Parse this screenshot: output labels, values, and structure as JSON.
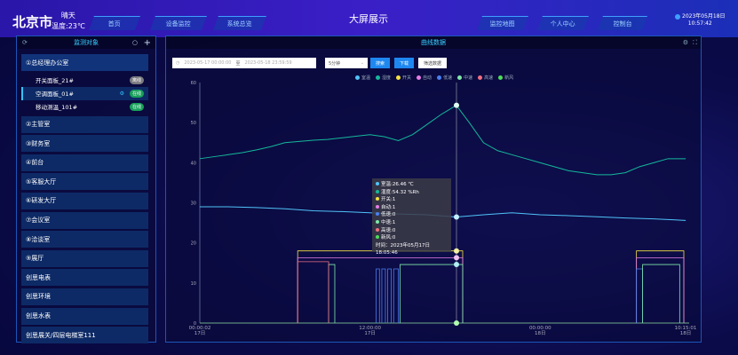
{
  "header": {
    "city": "北京市",
    "weather": "晴天",
    "temperature": "温度:23℃",
    "title": "大屏展示",
    "nav_left": [
      "首页",
      "设备监控",
      "系统总览"
    ],
    "nav_right": [
      "监控地图",
      "个人中心",
      "控制台"
    ],
    "date": "2023年05月18日",
    "time": "10:57:42"
  },
  "left_panel": {
    "title": "监测对象",
    "groups": [
      {
        "label": "①总经理办公室",
        "devices": [
          {
            "name": "开关面板_21#",
            "status": "离线",
            "status_color": "#7a7a80"
          },
          {
            "name": "空调面板_01#",
            "status": "在线",
            "status_color": "#17a05a",
            "selected": true
          },
          {
            "name": "移动测温_101#",
            "status": "在线",
            "status_color": "#17a05a"
          }
        ]
      }
    ],
    "items": [
      "②主管室",
      "③财务室",
      "④前台",
      "⑤客服大厅",
      "⑥研发大厅",
      "⑦会议室",
      "⑧洽谈室",
      "⑨展厅",
      "创思电表",
      "创思环境",
      "创思水表",
      "创思展关/四层电梯室111"
    ]
  },
  "main_panel": {
    "title": "曲线数据",
    "start_date": "2023-05-17 00:00:00",
    "end_label": "至",
    "end_date": "2023-05-18 23:59:59",
    "interval": "5分钟",
    "search": "搜索",
    "download": "下载",
    "filter": "筛选数据"
  },
  "tooltip": {
    "lines": [
      {
        "text": "室温:26.46 ℃",
        "color": "#4fc3f7"
      },
      {
        "text": "湿度:54.32 %Rh",
        "color": "#15b89a"
      },
      {
        "text": "开关:1",
        "color": "#f5e142"
      },
      {
        "text": "自动:1",
        "color": "#e67ee6"
      },
      {
        "text": "低速:0",
        "color": "#4a7ff0"
      },
      {
        "text": "中速:1",
        "color": "#7ee8a8"
      },
      {
        "text": "高速:0",
        "color": "#f07080"
      },
      {
        "text": "新风:0",
        "color": "#4ddc5a"
      }
    ],
    "time": "时间：2023年05月17日 18:05:46"
  },
  "chart_data": {
    "type": "line",
    "ylim": [
      0,
      60
    ],
    "yticks": [
      "0",
      "10",
      "20",
      "30",
      "40",
      "50",
      "60"
    ],
    "xticks": [
      {
        "t": "2023-05-17 00:00:02",
        "label": "00:00:02",
        "day": "17日"
      },
      {
        "t": "2023-05-17 12:00:00",
        "label": "12:00:00",
        "day": "17日"
      },
      {
        "t": "2023-05-18 00:00:00",
        "label": "00:00:00",
        "day": "18日"
      },
      {
        "t": "2023-05-18 10:15:01",
        "label": "10:15:01",
        "day": "18日"
      }
    ],
    "cursor": "2023-05-17 18:05:46",
    "series": [
      {
        "name": "室温",
        "color": "#4fc3f7",
        "points": [
          [
            "2023-05-17 00:00",
            29
          ],
          [
            "2023-05-17 02:00",
            29
          ],
          [
            "2023-05-17 04:00",
            28.8
          ],
          [
            "2023-05-17 06:00",
            28.5
          ],
          [
            "2023-05-17 08:00",
            28
          ],
          [
            "2023-05-17 10:00",
            27.8
          ],
          [
            "2023-05-17 12:00",
            27.5
          ],
          [
            "2023-05-17 14:00",
            27.2
          ],
          [
            "2023-05-17 16:00",
            27
          ],
          [
            "2023-05-17 18:05",
            26.46
          ],
          [
            "2023-05-17 20:00",
            27
          ],
          [
            "2023-05-17 22:00",
            27.5
          ],
          [
            "2023-05-18 00:00",
            27
          ],
          [
            "2023-05-18 02:00",
            26.8
          ],
          [
            "2023-05-18 04:00",
            26.5
          ],
          [
            "2023-05-18 06:00",
            26.2
          ],
          [
            "2023-05-18 08:00",
            26
          ],
          [
            "2023-05-18 10:15",
            25.6
          ]
        ]
      },
      {
        "name": "湿度",
        "color": "#15b89a",
        "points": [
          [
            "2023-05-17 00:00",
            41
          ],
          [
            "2023-05-17 01:00",
            41.5
          ],
          [
            "2023-05-17 02:00",
            42
          ],
          [
            "2023-05-17 03:00",
            42.5
          ],
          [
            "2023-05-17 04:00",
            43.2
          ],
          [
            "2023-05-17 05:00",
            44
          ],
          [
            "2023-05-17 06:00",
            45
          ],
          [
            "2023-05-17 07:00",
            45.3
          ],
          [
            "2023-05-17 08:00",
            45.6
          ],
          [
            "2023-05-17 09:00",
            45.8
          ],
          [
            "2023-05-17 10:00",
            46.2
          ],
          [
            "2023-05-17 11:00",
            46.6
          ],
          [
            "2023-05-17 12:00",
            47
          ],
          [
            "2023-05-17 13:00",
            46.5
          ],
          [
            "2023-05-17 14:00",
            45.5
          ],
          [
            "2023-05-17 15:00",
            47
          ],
          [
            "2023-05-17 16:00",
            49.5
          ],
          [
            "2023-05-17 17:00",
            52
          ],
          [
            "2023-05-17 18:05",
            54.32
          ],
          [
            "2023-05-17 19:00",
            50
          ],
          [
            "2023-05-17 20:00",
            45
          ],
          [
            "2023-05-17 21:00",
            43
          ],
          [
            "2023-05-17 22:00",
            42
          ],
          [
            "2023-05-17 23:00",
            41
          ],
          [
            "2023-05-18 00:00",
            40
          ],
          [
            "2023-05-18 01:00",
            39
          ],
          [
            "2023-05-18 02:00",
            38
          ],
          [
            "2023-05-18 03:00",
            37.5
          ],
          [
            "2023-05-18 04:00",
            37
          ],
          [
            "2023-05-18 05:00",
            37
          ],
          [
            "2023-05-18 06:00",
            37.5
          ],
          [
            "2023-05-18 07:00",
            39
          ],
          [
            "2023-05-18 08:00",
            40
          ],
          [
            "2023-05-18 09:00",
            41
          ],
          [
            "2023-05-18 10:15",
            41
          ]
        ]
      }
    ],
    "states": [
      {
        "name": "开关",
        "color": "#f5e142",
        "on": [
          [
            "2023-05-17 06:54",
            "2023-05-17 18:32"
          ],
          [
            "2023-05-18 06:47",
            "2023-05-18 10:15"
          ]
        ]
      },
      {
        "name": "自动",
        "color": "#e67ee6",
        "on": [
          [
            "2023-05-17 06:54",
            "2023-05-17 18:32"
          ],
          [
            "2023-05-18 06:47",
            "2023-05-18 10:15"
          ]
        ]
      },
      {
        "name": "低速",
        "color": "#4a7ff0",
        "on": [
          [
            "2023-05-17 12:26",
            "2023-05-17 12:40"
          ],
          [
            "2023-05-17 12:50",
            "2023-05-17 13:05"
          ],
          [
            "2023-05-17 13:15",
            "2023-05-17 13:30"
          ],
          [
            "2023-05-17 13:40",
            "2023-05-17 14:00"
          ],
          [
            "2023-05-18 06:47",
            "2023-05-18 07:13"
          ]
        ]
      },
      {
        "name": "中速",
        "color": "#7ee8a8",
        "on": [
          [
            "2023-05-17 09:05",
            "2023-05-17 09:31"
          ],
          [
            "2023-05-17 14:07",
            "2023-05-17 18:32"
          ],
          [
            "2023-05-18 07:13",
            "2023-05-18 09:50"
          ]
        ]
      },
      {
        "name": "高速",
        "color": "#f07080",
        "on": [
          [
            "2023-05-17 06:54",
            "2023-05-17 09:05"
          ]
        ]
      },
      {
        "name": "新风",
        "color": "#4ddc5a",
        "on": []
      }
    ]
  }
}
